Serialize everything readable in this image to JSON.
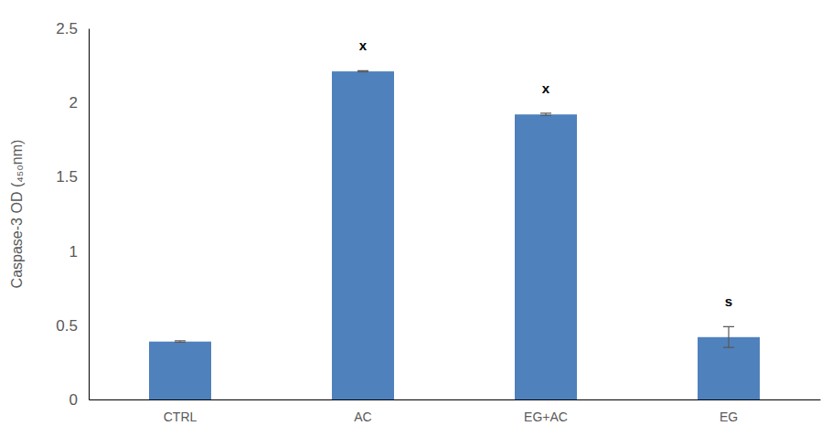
{
  "chart_data": {
    "type": "bar",
    "y_label": "Caspase-3 OD (₄₅₀nm)",
    "categories": [
      "CTRL",
      "AC",
      "EG+AC",
      "EG"
    ],
    "values": [
      0.39,
      2.21,
      1.92,
      0.42
    ],
    "errors": [
      0.005,
      0.004,
      0.008,
      0.07
    ],
    "annotations": [
      null,
      "x",
      "x",
      "s"
    ],
    "color": "#4f81bd",
    "ylim": [
      0,
      2.5
    ],
    "yticks": [
      0,
      0.5,
      1,
      1.5,
      2,
      2.5
    ],
    "grid": false
  }
}
